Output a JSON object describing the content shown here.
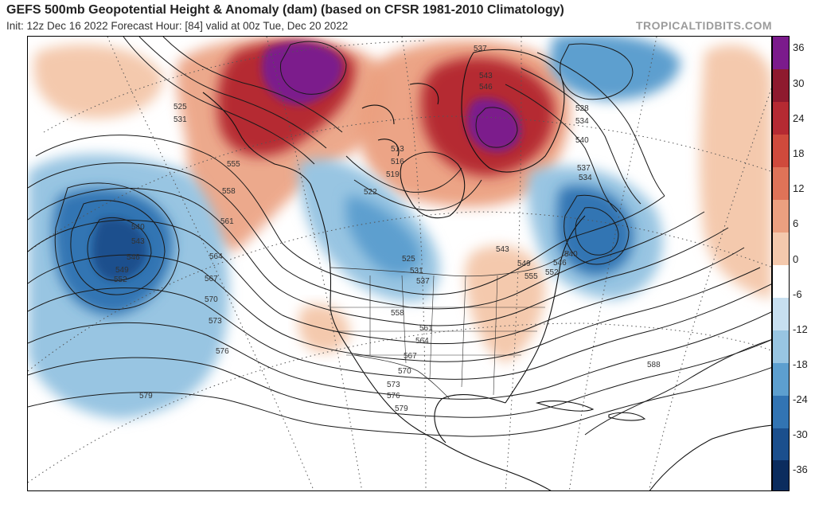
{
  "header": {
    "title": "GEFS 500mb Geopotential Height & Anomaly (dam) (based on CFSR 1981-2010 Climatology)",
    "subtitle": "Init: 12z Dec 16 2022   Forecast Hour: [84]   valid at 00z Tue, Dec 20 2022",
    "source": "TROPICALTIDBITS.COM"
  },
  "colorbar": {
    "labels": [
      "36",
      "30",
      "24",
      "18",
      "12",
      "6",
      "0",
      "-6",
      "-12",
      "-18",
      "-24",
      "-30",
      "-36"
    ],
    "colors": [
      "#7b1b8c",
      "#8e1a2e",
      "#b52a32",
      "#cf4a3c",
      "#df7358",
      "#eba080",
      "#f4c9ad",
      "#ffffff",
      "#c7dff0",
      "#98c5e2",
      "#5d9fcf",
      "#3274b3",
      "#1b4f8d",
      "#0b2c5e"
    ]
  },
  "contour_labels": [
    "525",
    "531",
    "555",
    "558",
    "561",
    "564",
    "567",
    "570",
    "573",
    "576",
    "579",
    "540",
    "543",
    "546",
    "549",
    "552",
    "537",
    "543",
    "546",
    "528",
    "534",
    "540",
    "537",
    "534",
    "513",
    "516",
    "519",
    "522",
    "525",
    "531",
    "537",
    "543",
    "549",
    "555",
    "540",
    "546",
    "552",
    "558",
    "561",
    "564",
    "567",
    "570",
    "573",
    "576",
    "579",
    "588"
  ]
}
